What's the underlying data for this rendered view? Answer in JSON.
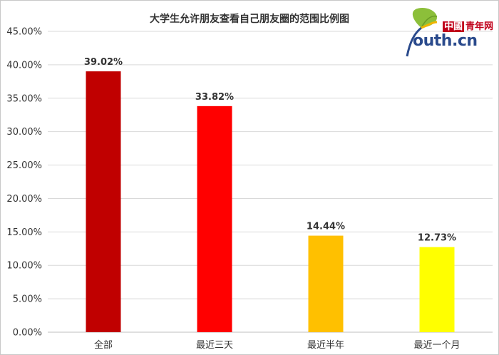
{
  "logo": {
    "cn_badge": "中國",
    "cn_text": "青年网",
    "en_text": "outh.cn"
  },
  "chart_data": {
    "type": "bar",
    "title": "大学生允许朋友查看自己朋友圈的范围比例图",
    "categories": [
      "全部",
      "最近三天",
      "最近半年",
      "最近一个月"
    ],
    "values": [
      39.02,
      33.82,
      14.44,
      12.73
    ],
    "value_labels": [
      "39.02%",
      "33.82%",
      "14.44%",
      "12.73%"
    ],
    "colors": [
      "#c00000",
      "#ff0000",
      "#ffc000",
      "#ffff00"
    ],
    "ylim": [
      0,
      45
    ],
    "yticks": [
      0,
      5,
      10,
      15,
      20,
      25,
      30,
      35,
      40,
      45
    ],
    "ytick_labels": [
      "0.00%",
      "5.00%",
      "10.00%",
      "15.00%",
      "20.00%",
      "25.00%",
      "30.00%",
      "35.00%",
      "40.00%",
      "45.00%"
    ],
    "xlabel": "",
    "ylabel": "",
    "grid": true,
    "legend": "none"
  }
}
